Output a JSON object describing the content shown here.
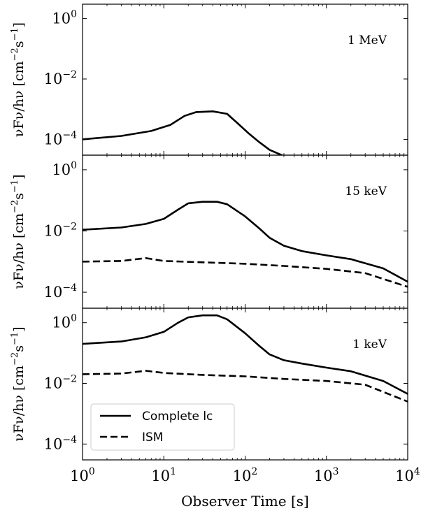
{
  "chart_data": {
    "type": "line",
    "xlabel": "Observer Time [s]",
    "xscale": "log",
    "xlim": [
      1,
      10000
    ],
    "x_tick_labels": [
      {
        "base": "10",
        "exp": "0"
      },
      {
        "base": "10",
        "exp": "1"
      },
      {
        "base": "10",
        "exp": "2"
      },
      {
        "base": "10",
        "exp": "3"
      },
      {
        "base": "10",
        "exp": "4"
      }
    ],
    "ylabel": {
      "main": "νFν/hν [cm",
      "exp1": "−2",
      "mid": "s",
      "exp2": "−1",
      "end": "]"
    },
    "yscale": "log",
    "ylim": [
      3e-05,
      3
    ],
    "y_tick_labels": [
      {
        "base": "10",
        "exp": "−4"
      },
      {
        "base": "10",
        "exp": "−2"
      },
      {
        "base": "10",
        "exp": "0"
      }
    ],
    "legend": {
      "placement": "lower-left of bottom panel",
      "entries": [
        {
          "label": "Complete lc",
          "style": "solid"
        },
        {
          "label": "ISM",
          "style": "dashed"
        }
      ]
    },
    "panels": [
      {
        "annotation": "1 MeV",
        "series": [
          {
            "style": "solid",
            "points": [
              [
                1,
                0.0001
              ],
              [
                3,
                0.00013
              ],
              [
                7,
                0.00019
              ],
              [
                12,
                0.0003
              ],
              [
                18,
                0.0006
              ],
              [
                25,
                0.0008
              ],
              [
                40,
                0.00085
              ],
              [
                60,
                0.0007
              ],
              [
                80,
                0.00035
              ],
              [
                110,
                0.00016
              ],
              [
                150,
                8e-05
              ],
              [
                200,
                4.5e-05
              ],
              [
                300,
                2.8e-05
              ],
              [
                330,
                2.7e-05
              ]
            ]
          }
        ]
      },
      {
        "annotation": "15 keV",
        "series": [
          {
            "style": "solid",
            "points": [
              [
                1,
                0.011
              ],
              [
                3,
                0.013
              ],
              [
                6,
                0.017
              ],
              [
                10,
                0.025
              ],
              [
                15,
                0.05
              ],
              [
                20,
                0.08
              ],
              [
                30,
                0.09
              ],
              [
                45,
                0.09
              ],
              [
                60,
                0.075
              ],
              [
                100,
                0.03
              ],
              [
                150,
                0.012
              ],
              [
                200,
                0.006
              ],
              [
                300,
                0.0033
              ],
              [
                500,
                0.0022
              ],
              [
                1000,
                0.0016
              ],
              [
                2000,
                0.0012
              ],
              [
                5000,
                0.0006
              ],
              [
                10000,
                0.00022
              ]
            ]
          },
          {
            "style": "dashed",
            "points": [
              [
                1,
                0.001
              ],
              [
                3,
                0.00105
              ],
              [
                6,
                0.0013
              ],
              [
                10,
                0.00105
              ],
              [
                30,
                0.00095
              ],
              [
                100,
                0.00085
              ],
              [
                300,
                0.00072
              ],
              [
                1000,
                0.00058
              ],
              [
                3000,
                0.00042
              ],
              [
                10000,
                0.00015
              ]
            ]
          }
        ]
      },
      {
        "annotation": "1 keV",
        "series": [
          {
            "style": "solid",
            "points": [
              [
                1,
                0.2
              ],
              [
                3,
                0.24
              ],
              [
                6,
                0.33
              ],
              [
                10,
                0.5
              ],
              [
                15,
                1.0
              ],
              [
                20,
                1.5
              ],
              [
                30,
                1.75
              ],
              [
                45,
                1.75
              ],
              [
                60,
                1.3
              ],
              [
                100,
                0.45
              ],
              [
                150,
                0.17
              ],
              [
                200,
                0.09
              ],
              [
                300,
                0.058
              ],
              [
                500,
                0.045
              ],
              [
                1000,
                0.033
              ],
              [
                2000,
                0.025
              ],
              [
                5000,
                0.012
              ],
              [
                10000,
                0.0045
              ]
            ]
          },
          {
            "style": "dashed",
            "points": [
              [
                1,
                0.02
              ],
              [
                3,
                0.021
              ],
              [
                6,
                0.026
              ],
              [
                10,
                0.022
              ],
              [
                30,
                0.019
              ],
              [
                100,
                0.017
              ],
              [
                300,
                0.014
              ],
              [
                1000,
                0.012
              ],
              [
                3000,
                0.009
              ],
              [
                10000,
                0.0025
              ]
            ]
          }
        ]
      }
    ]
  }
}
